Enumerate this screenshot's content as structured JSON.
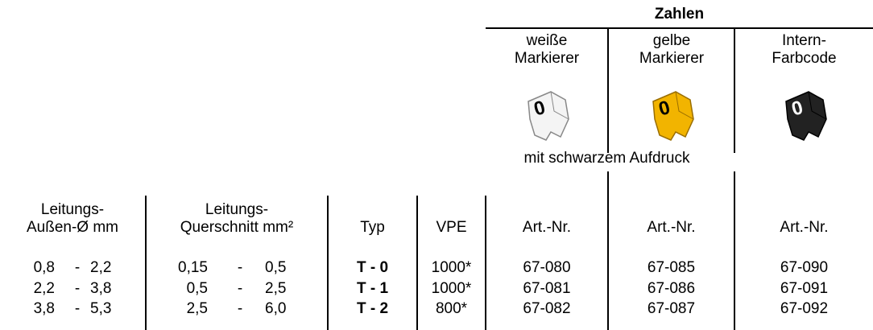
{
  "header": {
    "group_title": "Zahlen",
    "columns": [
      "weiße\nMarkierer",
      "gelbe\nMarkierer",
      "Intern-\nFarbcode"
    ],
    "icon_label": "0",
    "note": "mit schwarzem Aufdruck"
  },
  "table": {
    "headers": [
      "Leitungs-\nAußen-Ø mm",
      "Leitungs-\nQuerschnitt mm²",
      "Typ",
      "VPE",
      "Art.-Nr.",
      "Art.-Nr.",
      "Art.-Nr."
    ],
    "range_separator": "-",
    "rows": [
      [
        "0,8",
        "2,2",
        "0,15",
        "0,5",
        "T - 0",
        "1000*",
        "67-080",
        "67-085",
        "67-090"
      ],
      [
        "2,2",
        "3,8",
        "0,5",
        "2,5",
        "T - 1",
        "1000*",
        "67-081",
        "67-086",
        "67-091"
      ],
      [
        "3,8",
        "5,3",
        "2,5",
        "6,0",
        "T - 2",
        "800*",
        "67-082",
        "67-087",
        "67-092"
      ]
    ]
  }
}
